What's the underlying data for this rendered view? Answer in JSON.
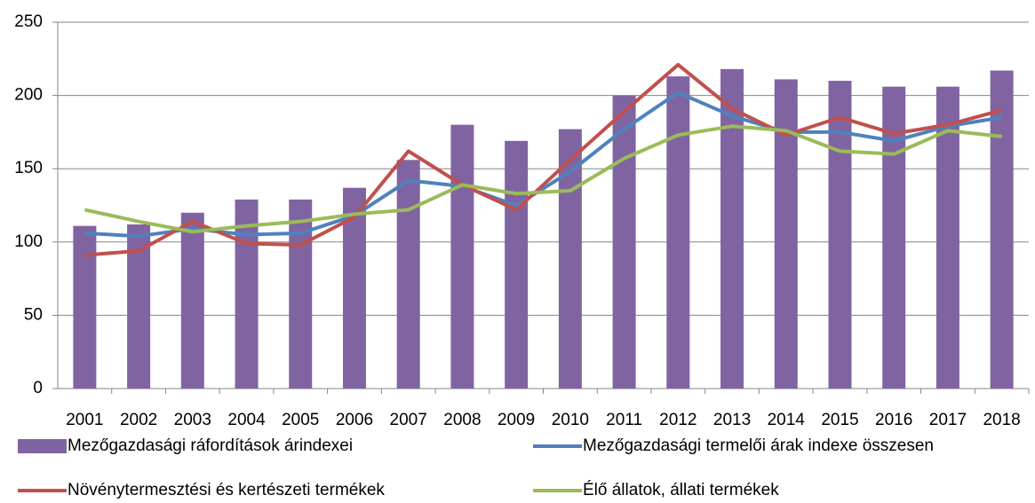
{
  "chart_data": {
    "type": "bar",
    "categories": [
      "2001",
      "2002",
      "2003",
      "2004",
      "2005",
      "2006",
      "2007",
      "2008",
      "2009",
      "2010",
      "2011",
      "2012",
      "2013",
      "2014",
      "2015",
      "2016",
      "2017",
      "2018"
    ],
    "series": [
      {
        "name": "Mezőgazdasági ráfordítások árindexei",
        "type": "bar",
        "color": "#8064a2",
        "values": [
          111,
          112,
          120,
          129,
          129,
          137,
          156,
          180,
          169,
          177,
          200,
          213,
          218,
          211,
          210,
          206,
          206,
          217
        ]
      },
      {
        "name": "Mezőgazdasági termelői árak indexe összesen",
        "type": "line",
        "color": "#4f81bd",
        "values": [
          106,
          104,
          109,
          105,
          106,
          118,
          142,
          138,
          125,
          148,
          177,
          202,
          186,
          175,
          175,
          169,
          179,
          185
        ]
      },
      {
        "name": "Növénytermesztési és kertészeti termékek",
        "type": "line",
        "color": "#c0504d",
        "values": [
          91,
          94,
          114,
          99,
          98,
          117,
          162,
          139,
          122,
          156,
          189,
          221,
          191,
          173,
          185,
          174,
          180,
          190
        ]
      },
      {
        "name": "Élő állatok, állati termékek",
        "type": "line",
        "color": "#9bbb59",
        "values": [
          122,
          114,
          107,
          111,
          114,
          119,
          122,
          139,
          133,
          135,
          157,
          173,
          179,
          176,
          162,
          160,
          176,
          172
        ]
      }
    ],
    "ylim": [
      0,
      250
    ],
    "yticks": [
      0,
      50,
      100,
      150,
      200,
      250
    ],
    "grid": true,
    "legend": "bottom"
  }
}
